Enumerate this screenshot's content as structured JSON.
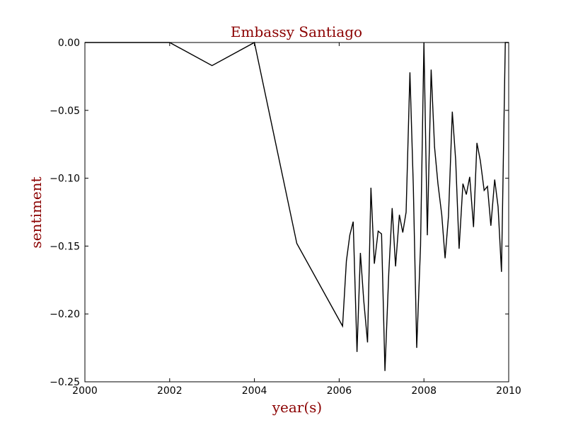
{
  "chart_data": {
    "type": "line",
    "title": "Embassy Santiago",
    "xlabel": "year(s)",
    "ylabel": "sentiment",
    "xlim": [
      2000,
      2010
    ],
    "ylim": [
      -0.25,
      0.0
    ],
    "x_ticks": [
      2000,
      2002,
      2004,
      2006,
      2008,
      2010
    ],
    "y_ticks": [
      0.0,
      -0.05,
      -0.1,
      -0.15,
      -0.2,
      -0.25
    ],
    "x_tick_labels": [
      "2000",
      "2002",
      "2004",
      "2006",
      "2008",
      "2010"
    ],
    "y_tick_labels": [
      "0.00",
      "−0.05",
      "−0.10",
      "−0.15",
      "−0.20",
      "−0.25"
    ],
    "grid": false,
    "colors": {
      "label_color": "#8b0000",
      "line_color": "#000000"
    },
    "series": [
      {
        "x": [
          2000.0,
          2002.0,
          2003.0,
          2004.0,
          2005.0,
          2006.08,
          2006.17,
          2006.25,
          2006.33,
          2006.42,
          2006.5,
          2006.58,
          2006.67,
          2006.75,
          2006.83,
          2006.92,
          2007.0,
          2007.08,
          2007.17,
          2007.25,
          2007.33,
          2007.42,
          2007.5,
          2007.58,
          2007.67,
          2007.75,
          2007.83,
          2007.92,
          2008.0,
          2008.08,
          2008.17,
          2008.25,
          2008.33,
          2008.42,
          2008.5,
          2008.58,
          2008.67,
          2008.75,
          2008.83,
          2008.92,
          2009.0,
          2009.08,
          2009.17,
          2009.25,
          2009.33,
          2009.42,
          2009.5,
          2009.58,
          2009.67,
          2009.75,
          2009.83,
          2009.92,
          2010.0
        ],
        "y": [
          0.0,
          0.0,
          -0.017,
          0.0,
          -0.148,
          -0.209,
          -0.161,
          -0.142,
          -0.132,
          -0.228,
          -0.155,
          -0.19,
          -0.221,
          -0.107,
          -0.163,
          -0.139,
          -0.141,
          -0.242,
          -0.17,
          -0.122,
          -0.165,
          -0.127,
          -0.14,
          -0.125,
          -0.022,
          -0.106,
          -0.225,
          -0.15,
          0.0,
          -0.142,
          -0.02,
          -0.077,
          -0.104,
          -0.127,
          -0.159,
          -0.128,
          -0.051,
          -0.087,
          -0.152,
          -0.104,
          -0.112,
          -0.099,
          -0.136,
          -0.074,
          -0.087,
          -0.109,
          -0.106,
          -0.135,
          -0.101,
          -0.121,
          -0.169,
          0.0,
          0.0
        ]
      }
    ]
  }
}
